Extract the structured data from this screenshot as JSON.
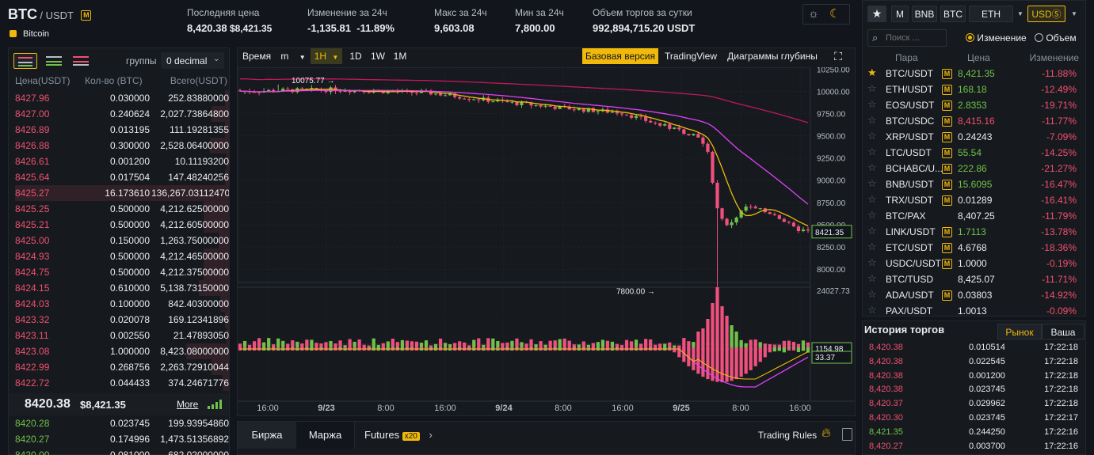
{
  "header": {
    "base": "BTC",
    "quote": "/ USDT",
    "badge": "M",
    "coin_name": "Bitcoin",
    "last_price_label": "Последняя цена",
    "last_price": "8,420.38",
    "last_price_usd": "$8,421.35",
    "change_label": "Изменение за 24ч",
    "change_value": "-1,135.81",
    "change_pct": "-11.89%",
    "high_label": "Макс за 24ч",
    "high_value": "9,603.08",
    "low_label": "Мин за 24ч",
    "low_value": "7,800.00",
    "volume_label": "Объем торгов за сутки",
    "volume_value": "992,894,715.20 USDT"
  },
  "orderbook": {
    "groups_label": "группы",
    "decimal_select": "0 decimal",
    "col_price": "Цена(USDT)",
    "col_qty": "Кол-во (BTC)",
    "col_total": "Всего(USDT)",
    "asks": [
      {
        "price": "8427.96",
        "qty": "0.030000",
        "total": "252.83880000",
        "depth": 0.02
      },
      {
        "price": "8427.00",
        "qty": "0.240624",
        "total": "2,027.73864800",
        "depth": 0.08
      },
      {
        "price": "8426.89",
        "qty": "0.013195",
        "total": "111.19281355",
        "depth": 0.02
      },
      {
        "price": "8426.88",
        "qty": "0.300000",
        "total": "2,528.06400000",
        "depth": 0.09
      },
      {
        "price": "8426.61",
        "qty": "0.001200",
        "total": "10.11193200",
        "depth": 0.01
      },
      {
        "price": "8425.64",
        "qty": "0.017504",
        "total": "147.48240256",
        "depth": 0.02
      },
      {
        "price": "8425.27",
        "qty": "16.173610",
        "total": "136,267.03112470",
        "depth": 1.0
      },
      {
        "price": "8425.25",
        "qty": "0.500000",
        "total": "4,212.62500000",
        "depth": 0.12
      },
      {
        "price": "8425.21",
        "qty": "0.500000",
        "total": "4,212.60500000",
        "depth": 0.12
      },
      {
        "price": "8425.00",
        "qty": "0.150000",
        "total": "1,263.75000000",
        "depth": 0.05
      },
      {
        "price": "8424.93",
        "qty": "0.500000",
        "total": "4,212.46500000",
        "depth": 0.12
      },
      {
        "price": "8424.75",
        "qty": "0.500000",
        "total": "4,212.37500000",
        "depth": 0.12
      },
      {
        "price": "8424.15",
        "qty": "0.610000",
        "total": "5,138.73150000",
        "depth": 0.14
      },
      {
        "price": "8424.03",
        "qty": "0.100000",
        "total": "842.40300000",
        "depth": 0.04
      },
      {
        "price": "8423.32",
        "qty": "0.020078",
        "total": "169.12341896",
        "depth": 0.02
      },
      {
        "price": "8423.11",
        "qty": "0.002550",
        "total": "21.47893050",
        "depth": 0.01
      },
      {
        "price": "8423.08",
        "qty": "1.000000",
        "total": "8,423.08000000",
        "depth": 0.2
      },
      {
        "price": "8422.99",
        "qty": "0.268756",
        "total": "2,263.72910044",
        "depth": 0.08
      },
      {
        "price": "8422.72",
        "qty": "0.044433",
        "total": "374.24671776",
        "depth": 0.03
      }
    ],
    "mid_price": "8420.38",
    "mid_usd": "$8,421.35",
    "more_label": "More",
    "bids": [
      {
        "price": "8420.28",
        "qty": "0.023745",
        "total": "199.93954860"
      },
      {
        "price": "8420.27",
        "qty": "0.174996",
        "total": "1,473.51356892"
      },
      {
        "price": "8420.00",
        "qty": "0.081000",
        "total": "682.02000000"
      }
    ]
  },
  "chart_toolbar": {
    "time_label": "Время",
    "interval_m": "m",
    "interval_active": "1H",
    "intervals": [
      "1D",
      "1W",
      "1M"
    ],
    "view_basic": "Базовая версия",
    "view_tv": "TradingView",
    "view_depth": "Диаграммы глубины"
  },
  "chart_data": {
    "type": "candlestick",
    "x_ticks": [
      "16:00",
      "9/23",
      "8:00",
      "16:00",
      "9/24",
      "8:00",
      "16:00",
      "9/25",
      "8:00",
      "16:00"
    ],
    "y_ticks": [
      "10250.00",
      "10000.00",
      "9750.00",
      "9500.00",
      "9250.00",
      "9000.00",
      "8750.00",
      "8500.00",
      "8250.00",
      "8000.00"
    ],
    "ylim": [
      7850,
      10270
    ],
    "current_price_label": "8421.35",
    "current_price": 8421.35,
    "high_marker": "10075.77",
    "high_value": 10075.77,
    "low_marker": "7800.00",
    "low_value": 7800.0,
    "volume_max_label": "24027.73",
    "volume_current_label": "1154.98",
    "macd_label": "33.37"
  },
  "market": {
    "tabs": [
      "M",
      "BNB",
      "BTC",
      "ETH",
      "USDⓈ"
    ],
    "search_placeholder": "Поиск ...",
    "radio_change": "Изменение",
    "radio_volume": "Объем",
    "col_pair": "Пара",
    "col_price": "Цена",
    "col_change": "Изменение",
    "pairs": [
      {
        "pair": "BTC/USDT",
        "margin": true,
        "price": "8,421.35",
        "change": "-11.88%",
        "pcolor": "green",
        "fav": true
      },
      {
        "pair": "ETH/USDT",
        "margin": true,
        "price": "168.18",
        "change": "-12.49%",
        "pcolor": "green",
        "fav": false
      },
      {
        "pair": "EOS/USDT",
        "margin": true,
        "price": "2.8353",
        "change": "-19.71%",
        "pcolor": "green",
        "fav": false
      },
      {
        "pair": "BTC/USDC",
        "margin": true,
        "price": "8,415.16",
        "change": "-11.77%",
        "pcolor": "red",
        "fav": false
      },
      {
        "pair": "XRP/USDT",
        "margin": true,
        "price": "0.24243",
        "change": "-7.09%",
        "pcolor": "white",
        "fav": false
      },
      {
        "pair": "LTC/USDT",
        "margin": true,
        "price": "55.54",
        "change": "-14.25%",
        "pcolor": "green",
        "fav": false
      },
      {
        "pair": "BCHABC/U...",
        "margin": true,
        "price": "222.86",
        "change": "-21.27%",
        "pcolor": "green",
        "fav": false
      },
      {
        "pair": "BNB/USDT",
        "margin": true,
        "price": "15.6095",
        "change": "-16.47%",
        "pcolor": "green",
        "fav": false
      },
      {
        "pair": "TRX/USDT",
        "margin": true,
        "price": "0.01289",
        "change": "-16.41%",
        "pcolor": "white",
        "fav": false
      },
      {
        "pair": "BTC/PAX",
        "margin": false,
        "price": "8,407.25",
        "change": "-11.79%",
        "pcolor": "white",
        "fav": false
      },
      {
        "pair": "LINK/USDT",
        "margin": true,
        "price": "1.7113",
        "change": "-13.78%",
        "pcolor": "green",
        "fav": false
      },
      {
        "pair": "ETC/USDT",
        "margin": true,
        "price": "4.6768",
        "change": "-18.36%",
        "pcolor": "white",
        "fav": false
      },
      {
        "pair": "USDC/USDT",
        "margin": true,
        "price": "1.0000",
        "change": "-0.19%",
        "pcolor": "white",
        "fav": false
      },
      {
        "pair": "BTC/TUSD",
        "margin": false,
        "price": "8,425.07",
        "change": "-11.71%",
        "pcolor": "white",
        "fav": false
      },
      {
        "pair": "ADA/USDT",
        "margin": true,
        "price": "0.03803",
        "change": "-14.92%",
        "pcolor": "white",
        "fav": false
      },
      {
        "pair": "PAX/USDT",
        "margin": false,
        "price": "1.0013",
        "change": "-0.09%",
        "pcolor": "white",
        "fav": false
      }
    ]
  },
  "history": {
    "title": "История торгов",
    "tab_market": "Рынок",
    "tab_mine": "Ваша",
    "rows": [
      {
        "price": "8,420.38",
        "qty": "0.010514",
        "time": "17:22:18",
        "color": "red"
      },
      {
        "price": "8,420.38",
        "qty": "0.022545",
        "time": "17:22:18",
        "color": "red"
      },
      {
        "price": "8,420.38",
        "qty": "0.001200",
        "time": "17:22:18",
        "color": "red"
      },
      {
        "price": "8,420.38",
        "qty": "0.023745",
        "time": "17:22:18",
        "color": "red"
      },
      {
        "price": "8,420.37",
        "qty": "0.029962",
        "time": "17:22:18",
        "color": "red"
      },
      {
        "price": "8,420.30",
        "qty": "0.023745",
        "time": "17:22:17",
        "color": "red"
      },
      {
        "price": "8,421.35",
        "qty": "0.244250",
        "time": "17:22:16",
        "color": "green"
      },
      {
        "price": "8,420.27",
        "qty": "0.003700",
        "time": "17:22:16",
        "color": "red"
      }
    ]
  },
  "bottom_tabs": {
    "exchange": "Биржа",
    "margin": "Маржа",
    "futures": "Futures",
    "futures_badge": "x20",
    "trading_rules": "Trading Rules"
  }
}
